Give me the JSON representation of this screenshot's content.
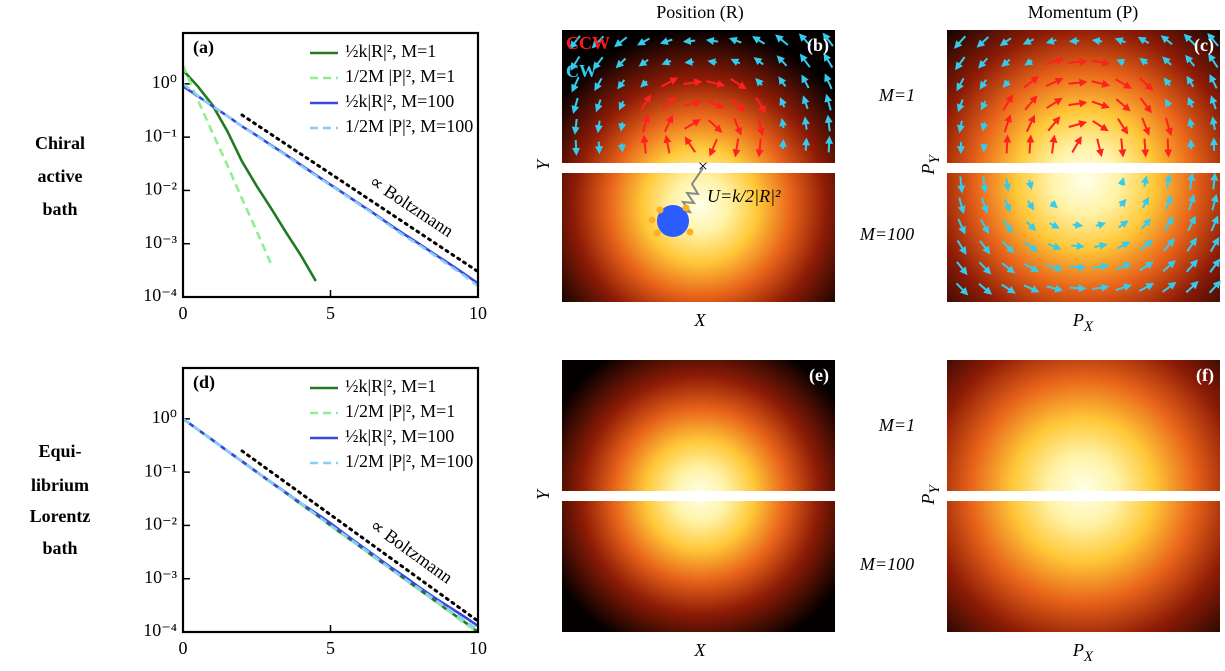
{
  "figure": {
    "column_titles": [
      "Position (R)",
      "Momentum (P)"
    ],
    "row_labels": [
      [
        "Chiral",
        "active",
        "bath"
      ],
      [
        "Equi-",
        "librium",
        "Lorentz",
        "bath"
      ]
    ],
    "panels": [
      {
        "label": "(b)",
        "xlabel": "X",
        "ylabel": "Y",
        "legend": [
          "CCW",
          "CW"
        ],
        "annotation": "U=k/2|R|²"
      },
      {
        "label": "(c)",
        "xlabel": {
          "base": "P",
          "sub": "X"
        },
        "ylabel": {
          "base": "P",
          "sub": "Y"
        },
        "m_labels": [
          "M=1",
          "M=100"
        ]
      },
      {
        "label": "(e)",
        "xlabel": "X",
        "ylabel": "Y"
      },
      {
        "label": "(f)",
        "xlabel": {
          "base": "P",
          "sub": "X"
        },
        "ylabel": {
          "base": "P",
          "sub": "Y"
        },
        "m_labels": [
          "M=1",
          "M=100"
        ]
      }
    ]
  },
  "chart_data": [
    {
      "type": "line",
      "panel_label": "(a)",
      "log_y": true,
      "xlim": [
        0,
        10
      ],
      "xticks": [
        0,
        5,
        10
      ],
      "ylim": [
        0.0001,
        9
      ],
      "yticks": [
        {
          "value": 1,
          "label": "10⁰"
        },
        {
          "value": 0.1,
          "label": "10⁻¹"
        },
        {
          "value": 0.01,
          "label": "10⁻²"
        },
        {
          "value": 0.001,
          "label": "10⁻³"
        },
        {
          "value": 0.0001,
          "label": "10⁻⁴"
        }
      ],
      "x": [
        0,
        0.5,
        1,
        1.5,
        2,
        2.5,
        3,
        3.5,
        4,
        4.5,
        5,
        5.5,
        6,
        6.5,
        7,
        7.5,
        8,
        8.5,
        9,
        9.5,
        10
      ],
      "series": [
        {
          "name": "½k|R|², M=1",
          "color": "#217a21",
          "dash": false,
          "values": [
            1.8,
            0.9,
            0.4,
            0.13,
            0.035,
            0.012,
            0.0045,
            0.0016,
            0.0006,
            0.0002,
            null,
            null,
            null,
            null,
            null,
            null,
            null,
            null,
            null,
            null,
            null
          ]
        },
        {
          "name": "1/2M |P|², M=1",
          "color": "#90ee90",
          "dash": true,
          "values": [
            2.2,
            0.5,
            0.12,
            0.03,
            0.007,
            0.0017,
            0.0004,
            null,
            null,
            null,
            null,
            null,
            null,
            null,
            null,
            null,
            null,
            null,
            null,
            null,
            null
          ]
        },
        {
          "name": "½k|R|², M=100",
          "color": "#3a48d8",
          "dash": false,
          "values": [
            0.9,
            0.59,
            0.38,
            0.25,
            0.16,
            0.107,
            0.07,
            0.046,
            0.03,
            0.0195,
            0.0128,
            0.0084,
            0.0055,
            0.0036,
            0.0023,
            0.0015,
            0.001,
            0.00065,
            0.00043,
            0.00028,
            0.00018
          ]
        },
        {
          "name": "1/2M |P|², M=100",
          "color": "#87cefa",
          "dash": true,
          "values": [
            1.0,
            0.6,
            0.38,
            0.25,
            0.16,
            0.105,
            0.068,
            0.045,
            0.029,
            0.019,
            0.0125,
            0.0082,
            0.0053,
            0.0035,
            0.0022,
            0.0014,
            0.00095,
            0.00062,
            0.0004,
            0.00026,
            0.00016
          ]
        }
      ],
      "reference": {
        "label": "∝ Boltzmann",
        "x": [
          2,
          10
        ],
        "values": [
          0.26,
          0.0003
        ]
      }
    },
    {
      "type": "line",
      "panel_label": "(d)",
      "log_y": true,
      "xlim": [
        0,
        10
      ],
      "xticks": [
        0,
        5,
        10
      ],
      "ylim": [
        0.0001,
        9
      ],
      "yticks": [
        {
          "value": 1,
          "label": "10⁰"
        },
        {
          "value": 0.1,
          "label": "10⁻¹"
        },
        {
          "value": 0.01,
          "label": "10⁻²"
        },
        {
          "value": 0.001,
          "label": "10⁻³"
        },
        {
          "value": 0.0001,
          "label": "10⁻⁴"
        }
      ],
      "x": [
        0,
        0.5,
        1,
        1.5,
        2,
        2.5,
        3,
        3.5,
        4,
        4.5,
        5,
        5.5,
        6,
        6.5,
        7,
        7.5,
        8,
        8.5,
        9,
        9.5,
        10
      ],
      "series": [
        {
          "name": "½k|R|², M=1",
          "color": "#217a21",
          "dash": false,
          "values": [
            1,
            0.63,
            0.4,
            0.25,
            0.16,
            0.1,
            0.063,
            0.04,
            0.025,
            0.016,
            0.01,
            0.0063,
            0.004,
            0.0025,
            0.0016,
            0.001,
            0.00063,
            0.0004,
            0.00025,
            0.00016,
            0.0001
          ]
        },
        {
          "name": "1/2M |P|², M=1",
          "color": "#90ee90",
          "dash": true,
          "values": [
            1,
            0.63,
            0.4,
            0.25,
            0.16,
            0.1,
            0.063,
            0.04,
            0.025,
            0.016,
            0.01,
            0.0063,
            0.004,
            0.0025,
            0.0016,
            0.001,
            0.00063,
            0.0004,
            0.00025,
            0.00015,
            0.0001
          ]
        },
        {
          "name": "½k|R|², M=100",
          "color": "#3a48d8",
          "dash": false,
          "values": [
            1,
            0.63,
            0.4,
            0.25,
            0.16,
            0.1,
            0.064,
            0.041,
            0.026,
            0.017,
            0.011,
            0.0068,
            0.0043,
            0.0027,
            0.0017,
            0.0011,
            0.0007,
            0.00045,
            0.0003,
            0.0002,
            0.00013
          ]
        },
        {
          "name": "1/2M |P|², M=100",
          "color": "#87cefa",
          "dash": true,
          "values": [
            1,
            0.63,
            0.4,
            0.25,
            0.16,
            0.1,
            0.063,
            0.04,
            0.026,
            0.016,
            0.01,
            0.0065,
            0.0041,
            0.0026,
            0.0016,
            0.001,
            0.00066,
            0.00042,
            0.00027,
            0.00017,
            0.00011
          ]
        }
      ],
      "reference": {
        "label": "∝ Boltzmann",
        "x": [
          2,
          10
        ],
        "values": [
          0.25,
          0.00016
        ]
      }
    }
  ]
}
